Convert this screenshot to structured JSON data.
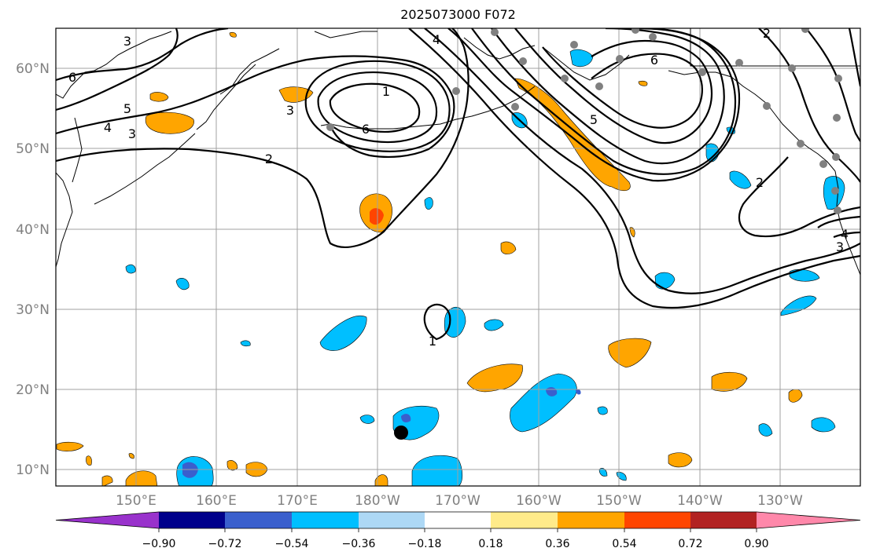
{
  "title": "2025073000 F072",
  "map": {
    "lat_labels": [
      "60°N",
      "50°N",
      "40°N",
      "30°N",
      "20°N",
      "10°N"
    ],
    "lon_labels": [
      "150°E",
      "160°E",
      "170°E",
      "180°W",
      "170°W",
      "160°W",
      "150°W",
      "140°W",
      "130°W"
    ],
    "contour_labels": [
      "3",
      "6",
      "5",
      "4",
      "3",
      "2",
      "3",
      "6",
      "4",
      "1",
      "5",
      "6",
      "2",
      "1",
      "2",
      "4",
      "3"
    ]
  },
  "colorbar": {
    "ticks": [
      "−0.90",
      "−0.72",
      "−0.54",
      "−0.36",
      "−0.18",
      "0.18",
      "0.36",
      "0.54",
      "0.72",
      "0.90"
    ],
    "colors": [
      "#9932CC",
      "#00008B",
      "#3A5FCD",
      "#00BFFF",
      "#ADD8F5",
      "#FFFFFF",
      "#FFEB8A",
      "#FFA500",
      "#FF4500",
      "#B22222",
      "#FF88AA"
    ]
  },
  "colors": {
    "positive_fill": "#FFA500",
    "positive_strong": "#FF4500",
    "negative_fill": "#00BFFF",
    "negative_strong": "#3A5FCD",
    "station_dot": "#808080"
  }
}
